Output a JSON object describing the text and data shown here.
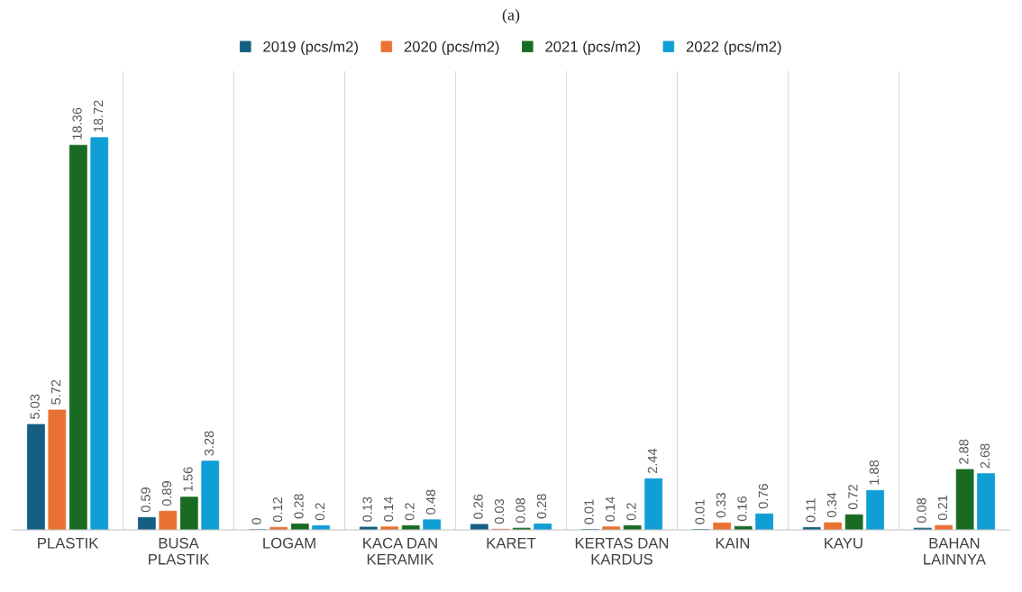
{
  "chart_data": {
    "type": "bar",
    "title": "(a)",
    "categories": [
      "PLASTIK",
      "BUSA PLASTIK",
      "LOGAM",
      "KACA DAN KERAMIK",
      "KARET",
      "KERTAS DAN KARDUS",
      "KAIN",
      "KAYU",
      "BAHAN LAINNYA"
    ],
    "series": [
      {
        "name": "2019 (pcs/m2)",
        "color": "#156082",
        "values": [
          5.03,
          0.59,
          0,
          0.13,
          0.26,
          0.01,
          0.01,
          0.11,
          0.08
        ]
      },
      {
        "name": "2020 (pcs/m2)",
        "color": "#e97132",
        "values": [
          5.72,
          0.89,
          0.12,
          0.14,
          0.03,
          0.14,
          0.33,
          0.34,
          0.21
        ]
      },
      {
        "name": "2021 (pcs/m2)",
        "color": "#196b24",
        "values": [
          18.36,
          1.56,
          0.28,
          0.2,
          0.08,
          0.2,
          0.16,
          0.72,
          2.88
        ]
      },
      {
        "name": "2022 (pcs/m2)",
        "color": "#0f9ed5",
        "values": [
          18.72,
          3.28,
          0.2,
          0.48,
          0.28,
          2.44,
          0.76,
          1.88,
          2.68
        ]
      }
    ],
    "data_labels": true,
    "legend": "top",
    "grid": false
  }
}
